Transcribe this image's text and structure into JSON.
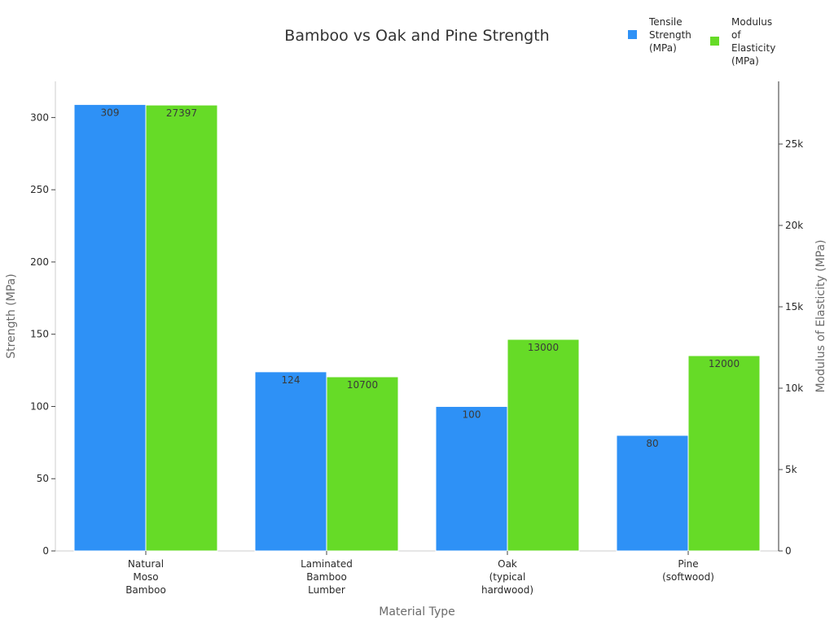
{
  "chart_data": {
    "type": "bar",
    "title": "Bamboo vs Oak and Pine Strength",
    "xlabel": "Material Type",
    "ylabel": "Strength (MPa)",
    "y2label": "Modulus of Elasticity (MPa)",
    "categories": [
      [
        "Natural",
        "Moso",
        "Bamboo"
      ],
      [
        "Laminated",
        "Bamboo",
        "Lumber"
      ],
      [
        "Oak",
        "(typical",
        "hardwood)"
      ],
      [
        "Pine",
        "(softwood)"
      ]
    ],
    "series": [
      {
        "name": [
          "Tensile",
          "Strength",
          "(MPa)"
        ],
        "axis": "left",
        "color": "#2e91f6",
        "values": [
          309,
          124,
          100,
          80
        ]
      },
      {
        "name": [
          "Modulus",
          "of",
          "Elasticity",
          "(MPa)"
        ],
        "axis": "right",
        "color": "#66db27",
        "values": [
          27397,
          10700,
          13000,
          12000
        ]
      }
    ],
    "ylim": [
      0,
      325
    ],
    "y2lim": [
      0,
      28850
    ],
    "yticks": [
      0,
      50,
      100,
      150,
      200,
      250,
      300
    ],
    "y2ticks": [
      0,
      5000,
      10000,
      15000,
      20000,
      25000
    ],
    "y2ticklabels": [
      "0",
      "5k",
      "10k",
      "15k",
      "20k",
      "25k"
    ],
    "legend": "top-right",
    "grid": false
  }
}
